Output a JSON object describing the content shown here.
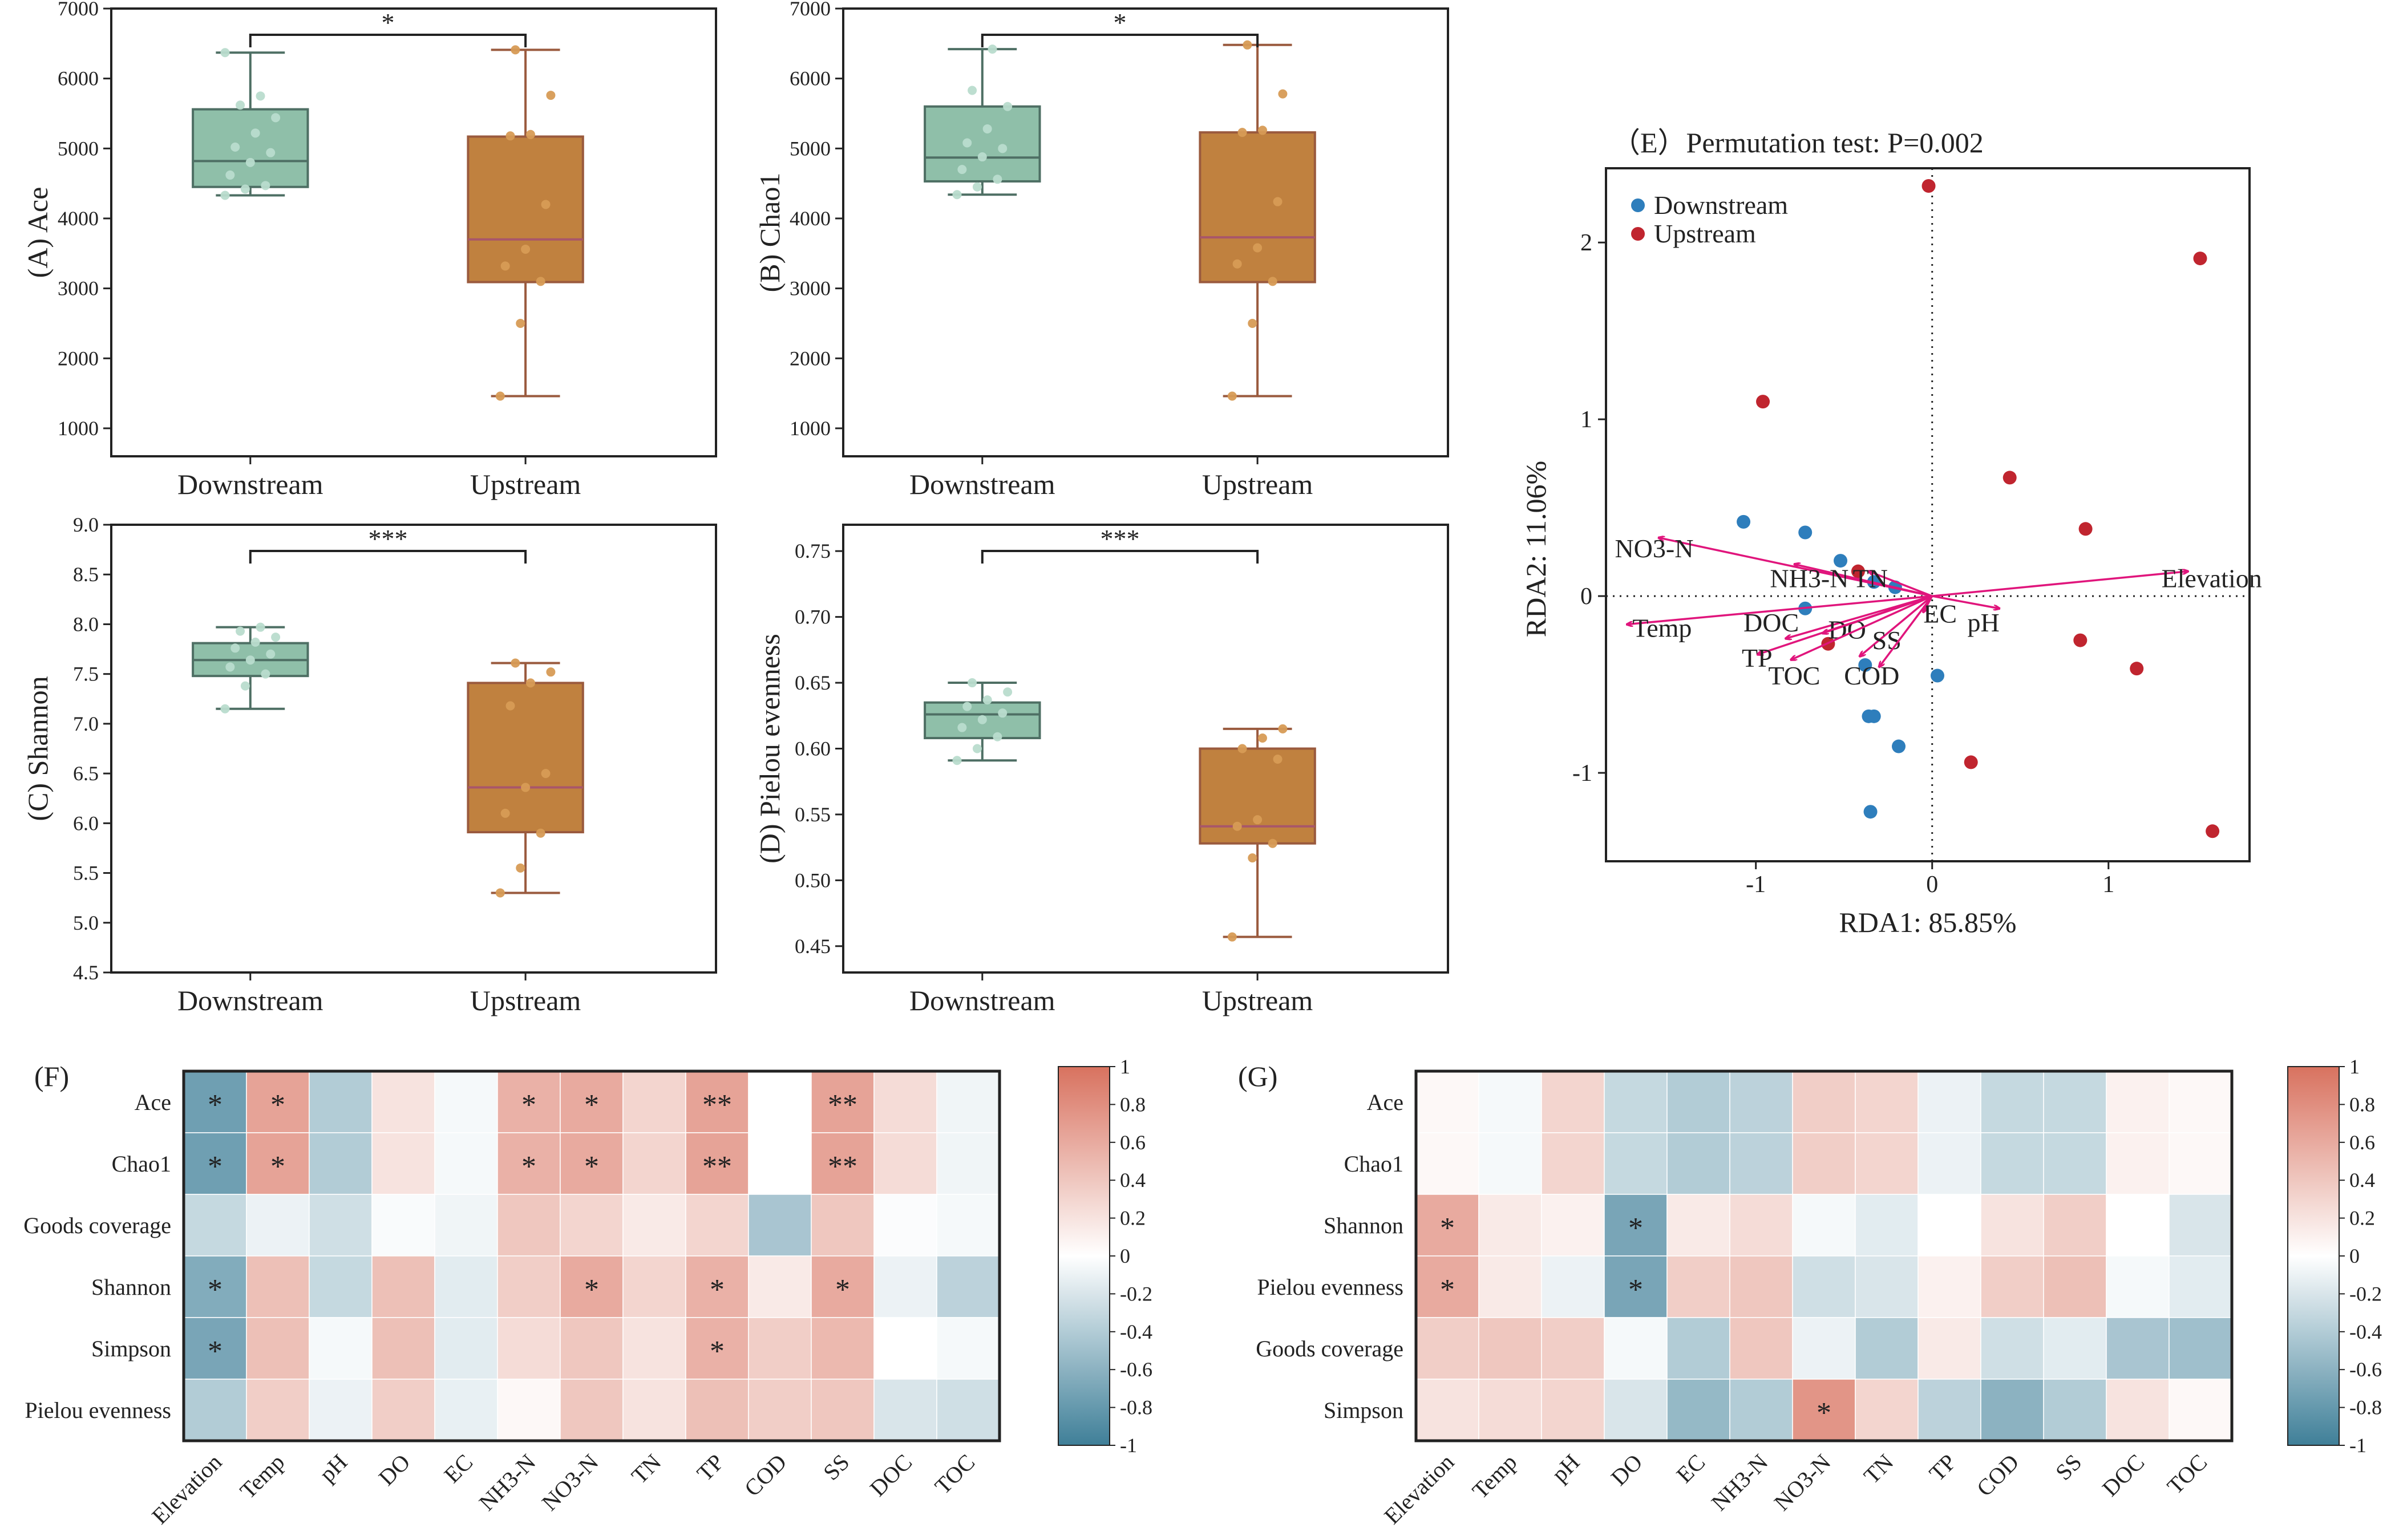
{
  "colors": {
    "downstream_fill": "#8fbfa9",
    "downstream_edge": "#4e6f64",
    "downstream_point": "#b9dccd",
    "upstream_fill": "#c0813f",
    "upstream_edge": "#9a5a3e",
    "upstream_point": "#d79b55",
    "rda_downstream": "#2e7ebc",
    "rda_upstream": "#c0252f",
    "arrow": "#e0157c",
    "heat_neg": "#3f7f98",
    "heat_zero": "#ffffff",
    "heat_pos": "#d8725f"
  },
  "chart_data": [
    {
      "id": "A",
      "type": "box",
      "ylabel": "(A) Ace",
      "categories": [
        "Downstream",
        "Upstream"
      ],
      "ylim": [
        600,
        7000
      ],
      "yticks": [
        1000,
        2000,
        3000,
        4000,
        5000,
        6000,
        7000
      ],
      "significance": "*",
      "boxes": [
        {
          "group": "Downstream",
          "min": 4330,
          "q1": 4450,
          "median": 4820,
          "q3": 5560,
          "max": 6370,
          "points": [
            4330,
            4420,
            4470,
            4620,
            4800,
            4940,
            5020,
            5220,
            5440,
            5620,
            5750,
            6370
          ]
        },
        {
          "group": "Upstream",
          "min": 1460,
          "q1": 3090,
          "median": 3700,
          "q3": 5170,
          "max": 6410,
          "points": [
            1460,
            2500,
            3100,
            3320,
            3560,
            4200,
            5180,
            5200,
            5760,
            6410
          ]
        }
      ]
    },
    {
      "id": "B",
      "type": "box",
      "ylabel": "(B) Chao1",
      "categories": [
        "Downstream",
        "Upstream"
      ],
      "ylim": [
        600,
        7000
      ],
      "yticks": [
        1000,
        2000,
        3000,
        4000,
        5000,
        6000,
        7000
      ],
      "significance": "*",
      "boxes": [
        {
          "group": "Downstream",
          "min": 4340,
          "q1": 4530,
          "median": 4870,
          "q3": 5600,
          "max": 6420,
          "points": [
            4340,
            4450,
            4560,
            4700,
            4880,
            5000,
            5080,
            5280,
            5600,
            5830,
            6420
          ]
        },
        {
          "group": "Upstream",
          "min": 1460,
          "q1": 3090,
          "median": 3730,
          "q3": 5230,
          "max": 6480,
          "points": [
            1460,
            2500,
            3100,
            3350,
            3580,
            4240,
            5230,
            5260,
            5780,
            6480
          ]
        }
      ]
    },
    {
      "id": "C",
      "type": "box",
      "ylabel": "(C) Shannon",
      "categories": [
        "Downstream",
        "Upstream"
      ],
      "ylim": [
        4.5,
        9.0
      ],
      "yticks": [
        4.5,
        5.0,
        5.5,
        6.0,
        6.5,
        7.0,
        7.5,
        8.0,
        8.5,
        9.0
      ],
      "significance": "***",
      "boxes": [
        {
          "group": "Downstream",
          "min": 7.15,
          "q1": 7.48,
          "median": 7.64,
          "q3": 7.81,
          "max": 7.97,
          "points": [
            7.15,
            7.38,
            7.5,
            7.57,
            7.64,
            7.7,
            7.76,
            7.82,
            7.87,
            7.93,
            7.97
          ]
        },
        {
          "group": "Upstream",
          "min": 5.3,
          "q1": 5.91,
          "median": 6.36,
          "q3": 7.41,
          "max": 7.61,
          "points": [
            5.3,
            5.55,
            5.9,
            6.1,
            6.36,
            6.5,
            7.18,
            7.41,
            7.52,
            7.61
          ]
        }
      ]
    },
    {
      "id": "D",
      "type": "box",
      "ylabel": "(D) Pielou evenness",
      "categories": [
        "Downstream",
        "Upstream"
      ],
      "ylim": [
        0.43,
        0.77
      ],
      "yticks": [
        0.45,
        0.5,
        0.55,
        0.6,
        0.65,
        0.7,
        0.75
      ],
      "significance": "***",
      "boxes": [
        {
          "group": "Downstream",
          "min": 0.591,
          "q1": 0.608,
          "median": 0.626,
          "q3": 0.635,
          "max": 0.65,
          "points": [
            0.591,
            0.6,
            0.609,
            0.616,
            0.622,
            0.627,
            0.632,
            0.637,
            0.643,
            0.65
          ]
        },
        {
          "group": "Upstream",
          "min": 0.457,
          "q1": 0.528,
          "median": 0.541,
          "q3": 0.6,
          "max": 0.615,
          "points": [
            0.457,
            0.517,
            0.528,
            0.541,
            0.546,
            0.592,
            0.6,
            0.608,
            0.615
          ]
        }
      ]
    },
    {
      "id": "E",
      "type": "scatter",
      "title": "（E）Permutation test: P=0.002",
      "xlabel": "RDA1: 85.85%",
      "ylabel": "RDA2: 11.06%",
      "xlim": [
        -1.85,
        1.8
      ],
      "ylim": [
        -1.5,
        2.42
      ],
      "xticks": [
        -1,
        0,
        1
      ],
      "yticks": [
        -1,
        0,
        1,
        2
      ],
      "legend": [
        "Downstream",
        "Upstream"
      ],
      "series": [
        {
          "name": "Downstream",
          "points": [
            [
              -1.07,
              0.42
            ],
            [
              -0.72,
              0.36
            ],
            [
              -0.52,
              0.2
            ],
            [
              -0.33,
              0.08
            ],
            [
              -0.21,
              0.05
            ],
            [
              -0.72,
              -0.07
            ],
            [
              -0.38,
              -0.39
            ],
            [
              -0.33,
              -0.68
            ],
            [
              -0.36,
              -0.68
            ],
            [
              0.03,
              -0.45
            ],
            [
              -0.19,
              -0.85
            ],
            [
              -0.35,
              -1.22
            ]
          ]
        },
        {
          "name": "Upstream",
          "points": [
            [
              -0.02,
              2.32
            ],
            [
              1.52,
              1.91
            ],
            [
              -0.96,
              1.1
            ],
            [
              0.44,
              0.67
            ],
            [
              0.87,
              0.38
            ],
            [
              -0.42,
              0.14
            ],
            [
              -0.59,
              -0.27
            ],
            [
              0.84,
              -0.25
            ],
            [
              1.16,
              -0.41
            ],
            [
              0.22,
              -0.94
            ],
            [
              1.59,
              -1.33
            ]
          ]
        }
      ],
      "vectors": [
        {
          "name": "Elevation",
          "x": 1.45,
          "y": 0.14,
          "lx": 1.3,
          "ly": 0.05
        },
        {
          "name": "NO3-N",
          "x": -1.55,
          "y": 0.33,
          "lx": -1.8,
          "ly": 0.22
        },
        {
          "name": "NH3-N",
          "x": -0.78,
          "y": 0.18,
          "lx": -0.92,
          "ly": 0.05
        },
        {
          "name": "TN",
          "x": -0.36,
          "y": 0.14,
          "lx": -0.45,
          "ly": 0.05
        },
        {
          "name": "Temp",
          "x": -1.73,
          "y": -0.16,
          "lx": -1.7,
          "ly": -0.23
        },
        {
          "name": "DOC",
          "x": -0.83,
          "y": -0.24,
          "lx": -1.07,
          "ly": -0.2
        },
        {
          "name": "DO",
          "x": -0.62,
          "y": -0.21,
          "lx": -0.59,
          "ly": -0.24
        },
        {
          "name": "SS",
          "x": -0.41,
          "y": -0.34,
          "lx": -0.34,
          "ly": -0.3
        },
        {
          "name": "EC",
          "x": -0.05,
          "y": -0.09,
          "lx": -0.05,
          "ly": -0.15
        },
        {
          "name": "pH",
          "x": 0.38,
          "y": -0.07,
          "lx": 0.2,
          "ly": -0.2
        },
        {
          "name": "TP",
          "x": -0.99,
          "y": -0.33,
          "lx": -1.08,
          "ly": -0.4
        },
        {
          "name": "TOC",
          "x": -0.8,
          "y": -0.36,
          "lx": -0.93,
          "ly": -0.5
        },
        {
          "name": "COD",
          "x": -0.3,
          "y": -0.4,
          "lx": -0.5,
          "ly": -0.5
        }
      ]
    },
    {
      "id": "F",
      "type": "heatmap",
      "title": "(F)",
      "rows": [
        "Ace",
        "Chao1",
        "Goods coverage",
        "Shannon",
        "Simpson",
        "Pielou evenness"
      ],
      "cols": [
        "Elevation",
        "Temp",
        "pH",
        "DO",
        "EC",
        "NH3-N",
        "NO3-N",
        "TN",
        "TP",
        "COD",
        "SS",
        "DOC",
        "TOC"
      ],
      "values": [
        [
          -0.75,
          0.65,
          -0.4,
          0.2,
          -0.05,
          0.55,
          0.6,
          0.3,
          0.65,
          0.0,
          0.65,
          0.25,
          -0.08
        ],
        [
          -0.75,
          0.65,
          -0.4,
          0.2,
          -0.05,
          0.55,
          0.6,
          0.3,
          0.65,
          0.0,
          0.65,
          0.25,
          -0.08
        ],
        [
          -0.3,
          -0.1,
          -0.25,
          -0.03,
          -0.08,
          0.4,
          0.3,
          0.15,
          0.3,
          -0.45,
          0.4,
          -0.02,
          -0.05
        ],
        [
          -0.65,
          0.45,
          -0.3,
          0.45,
          -0.15,
          0.35,
          0.6,
          0.3,
          0.55,
          0.15,
          0.6,
          -0.1,
          -0.35
        ],
        [
          -0.7,
          0.45,
          -0.05,
          0.45,
          -0.15,
          0.25,
          0.4,
          0.2,
          0.55,
          0.35,
          0.5,
          0.0,
          -0.05
        ],
        [
          -0.4,
          0.35,
          -0.1,
          0.35,
          -0.12,
          0.05,
          0.4,
          0.2,
          0.45,
          0.35,
          0.4,
          -0.2,
          -0.25
        ]
      ],
      "stars": [
        [
          "*",
          "*",
          "",
          "",
          "",
          "*",
          "*",
          "",
          "**",
          "",
          "**",
          "",
          ""
        ],
        [
          "*",
          "*",
          "",
          "",
          "",
          "*",
          "*",
          "",
          "**",
          "",
          "**",
          "",
          ""
        ],
        [
          "",
          "",
          "",
          "",
          "",
          "",
          "",
          "",
          "",
          "",
          "",
          "",
          ""
        ],
        [
          "*",
          "",
          "",
          "",
          "",
          "",
          "*",
          "",
          "*",
          "",
          "*",
          "",
          ""
        ],
        [
          "*",
          "",
          "",
          "",
          "",
          "",
          "",
          "",
          "*",
          "",
          "",
          "",
          ""
        ],
        [
          "",
          "",
          "",
          "",
          "",
          "",
          "",
          "",
          "",
          "",
          "",
          "",
          ""
        ]
      ],
      "colorbar": {
        "ticks": [
          1,
          0.8,
          0.6,
          0.4,
          0.2,
          0,
          -0.2,
          -0.4,
          -0.6,
          -0.8,
          -1
        ]
      }
    },
    {
      "id": "G",
      "type": "heatmap",
      "title": "(G)",
      "rows": [
        "Ace",
        "Chao1",
        "Shannon",
        "Pielou evenness",
        "Goods coverage",
        "Simpson"
      ],
      "cols": [
        "Elevation",
        "Temp",
        "pH",
        "DO",
        "EC",
        "NH3-N",
        "NO3-N",
        "TN",
        "TP",
        "COD",
        "SS",
        "DOC",
        "TOC"
      ],
      "values": [
        [
          0.05,
          -0.05,
          0.3,
          -0.3,
          -0.4,
          -0.35,
          0.35,
          0.3,
          -0.1,
          -0.3,
          -0.3,
          0.1,
          0.05
        ],
        [
          0.05,
          -0.05,
          0.3,
          -0.3,
          -0.4,
          -0.35,
          0.35,
          0.3,
          -0.1,
          -0.3,
          -0.3,
          0.1,
          0.05
        ],
        [
          0.6,
          0.15,
          0.1,
          -0.7,
          0.15,
          0.25,
          -0.05,
          -0.15,
          0.0,
          0.2,
          0.35,
          0.0,
          -0.2
        ],
        [
          0.6,
          0.15,
          -0.1,
          -0.7,
          0.35,
          0.4,
          -0.25,
          -0.2,
          0.1,
          0.35,
          0.45,
          -0.05,
          -0.15
        ],
        [
          0.35,
          0.4,
          0.35,
          -0.05,
          -0.4,
          0.4,
          -0.1,
          -0.4,
          0.15,
          -0.25,
          -0.15,
          -0.45,
          -0.5
        ],
        [
          0.2,
          0.25,
          0.3,
          -0.2,
          -0.55,
          -0.4,
          0.75,
          0.3,
          -0.35,
          -0.6,
          -0.4,
          0.2,
          0.05
        ]
      ],
      "stars": [
        [
          "",
          "",
          "",
          "",
          "",
          "",
          "",
          "",
          "",
          "",
          "",
          "",
          ""
        ],
        [
          "",
          "",
          "",
          "",
          "",
          "",
          "",
          "",
          "",
          "",
          "",
          "",
          ""
        ],
        [
          "*",
          "",
          "",
          "*",
          "",
          "",
          "",
          "",
          "",
          "",
          "",
          "",
          ""
        ],
        [
          "*",
          "",
          "",
          "*",
          "",
          "",
          "",
          "",
          "",
          "",
          "",
          "",
          ""
        ],
        [
          "",
          "",
          "",
          "",
          "",
          "",
          "",
          "",
          "",
          "",
          "",
          "",
          ""
        ],
        [
          "",
          "",
          "",
          "",
          "",
          "",
          "*",
          "",
          "",
          "",
          "",
          "",
          ""
        ]
      ],
      "colorbar": {
        "ticks": [
          1,
          0.8,
          0.6,
          0.4,
          0.2,
          0,
          -0.2,
          -0.4,
          -0.6,
          -0.8,
          -1
        ]
      }
    }
  ]
}
